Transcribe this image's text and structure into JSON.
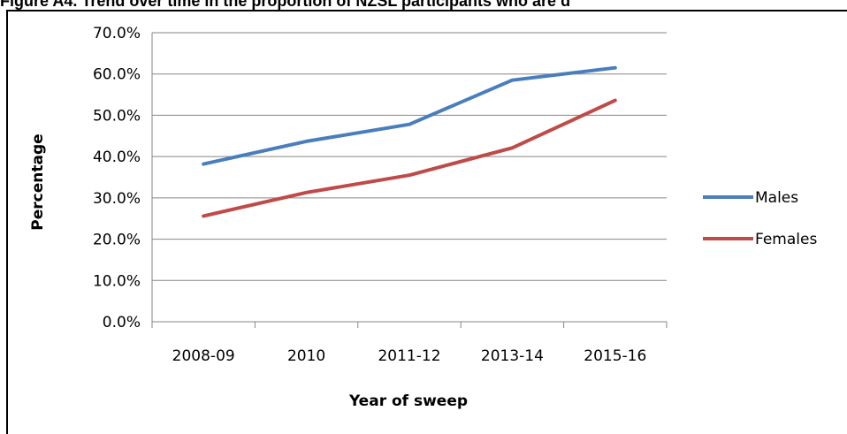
{
  "figure_title": "Figure A4. Trend over time in the proportion of NZSL participants who are d",
  "chart_data": {
    "type": "line",
    "title": "",
    "xlabel": "Year of sweep",
    "ylabel": "Percentage",
    "categories": [
      "2008-09",
      "2010",
      "2011-12",
      "2013-14",
      "2015-16"
    ],
    "ylim": [
      0,
      70
    ],
    "yticks": [
      0,
      10,
      20,
      30,
      40,
      50,
      60,
      70
    ],
    "ytick_labels": [
      "0.0%",
      "10.0%",
      "20.0%",
      "30.0%",
      "40.0%",
      "50.0%",
      "60.0%",
      "70.0%"
    ],
    "grid": true,
    "legend_position": "right",
    "series": [
      {
        "name": "Males",
        "color": "#4a7ebb",
        "values": [
          38.2,
          43.7,
          47.8,
          58.5,
          61.5
        ]
      },
      {
        "name": "Females",
        "color": "#be4b48",
        "values": [
          25.6,
          31.3,
          35.5,
          42.1,
          53.6
        ]
      }
    ]
  }
}
